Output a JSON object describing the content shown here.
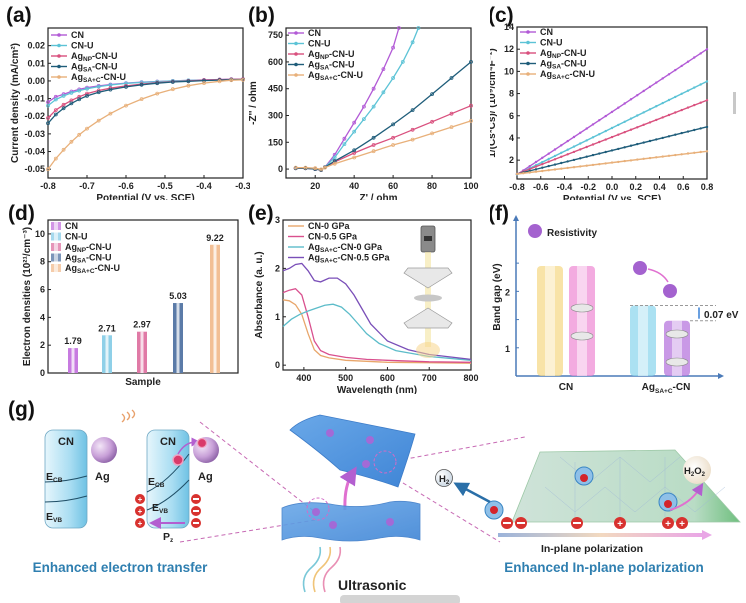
{
  "figure": {
    "panel_labels": [
      "(a)",
      "(b)",
      "(c)",
      "(d)",
      "(e)",
      "(f)",
      "(g)"
    ]
  },
  "legend_series": [
    {
      "name": "CN",
      "base": "CN",
      "sub": "",
      "tail": "",
      "color": "#b25ad6"
    },
    {
      "name": "CN-U",
      "base": "CN-U",
      "sub": "",
      "tail": "",
      "color": "#5cc3d6"
    },
    {
      "name": "AgNP-CN-U",
      "base": "Ag",
      "sub": "NP",
      "tail": "-CN-U",
      "color": "#d9507e"
    },
    {
      "name": "AgSA-CN-U",
      "base": "Ag",
      "sub": "SA",
      "tail": "-CN-U",
      "color": "#1f5d7a"
    },
    {
      "name": "AgSA+C-CN-U",
      "base": "Ag",
      "sub": "SA+C",
      "tail": "-CN-U",
      "color": "#e8b07a"
    }
  ],
  "chart_data": [
    {
      "id": "a",
      "type": "line",
      "title": "",
      "xlabel": "Potential (V vs. SCE)",
      "ylabel": "Current density (mA/cm²)",
      "xlim": [
        -0.8,
        -0.3
      ],
      "ylim": [
        -0.055,
        0.03
      ],
      "xticks": [
        -0.8,
        -0.7,
        -0.6,
        -0.5,
        -0.4,
        -0.3
      ],
      "xtick_labels": [
        "-0.8",
        "-0.7",
        "-0.6",
        "-0.5",
        "-0.4",
        "-0.3"
      ],
      "yticks": [
        -0.05,
        -0.04,
        -0.03,
        -0.02,
        -0.01,
        0.0,
        0.01,
        0.02
      ],
      "ytick_labels": [
        "-0.05",
        "-0.04",
        "-0.03",
        "-0.02",
        "-0.01",
        "0.00",
        "0.01",
        "0.02"
      ],
      "legend_position": "top-left",
      "x": [
        -0.8,
        -0.78,
        -0.76,
        -0.74,
        -0.72,
        -0.7,
        -0.67,
        -0.64,
        -0.6,
        -0.56,
        -0.52,
        -0.48,
        -0.44,
        -0.4,
        -0.36,
        -0.33,
        -0.3
      ],
      "series": [
        {
          "name": "CN",
          "values": [
            -0.012,
            -0.009,
            -0.0075,
            -0.006,
            -0.0048,
            -0.0038,
            -0.0028,
            -0.002,
            -0.0012,
            -0.0007,
            -0.0003,
            0.0,
            0.0003,
            0.0006,
            0.0008,
            0.001,
            0.001
          ]
        },
        {
          "name": "CN-U",
          "values": [
            -0.014,
            -0.0105,
            -0.0085,
            -0.0068,
            -0.0055,
            -0.0044,
            -0.0032,
            -0.0023,
            -0.0014,
            -0.0008,
            -0.0004,
            0.0,
            0.0003,
            0.0005,
            0.0007,
            0.0008,
            0.0009
          ]
        },
        {
          "name": "AgNP-CN-U",
          "values": [
            -0.021,
            -0.0165,
            -0.0135,
            -0.011,
            -0.009,
            -0.0072,
            -0.0054,
            -0.0041,
            -0.0028,
            -0.0018,
            -0.001,
            -0.0004,
            0.0,
            0.0004,
            0.0007,
            0.0009,
            0.001
          ]
        },
        {
          "name": "AgSA-CN-U",
          "values": [
            -0.024,
            -0.019,
            -0.0155,
            -0.0127,
            -0.0104,
            -0.0085,
            -0.0064,
            -0.0049,
            -0.0034,
            -0.0022,
            -0.0013,
            -0.0006,
            -0.0002,
            0.0002,
            0.0005,
            0.0007,
            0.0008
          ]
        },
        {
          "name": "AgSA+C-CN-U",
          "values": [
            -0.05,
            -0.044,
            -0.039,
            -0.0345,
            -0.0305,
            -0.027,
            -0.0225,
            -0.0185,
            -0.014,
            -0.0103,
            -0.0072,
            -0.0047,
            -0.0027,
            -0.0012,
            -0.0002,
            0.0004,
            0.0006
          ]
        }
      ]
    },
    {
      "id": "b",
      "type": "line",
      "title": "",
      "xlabel": "Z' / ohm",
      "ylabel": "-Z'' / ohm",
      "xlim": [
        5,
        100
      ],
      "ylim": [
        -50,
        790
      ],
      "xticks": [
        20,
        40,
        60,
        80,
        100
      ],
      "xtick_labels": [
        "20",
        "40",
        "60",
        "80",
        "100"
      ],
      "yticks": [
        0,
        150,
        300,
        450,
        600,
        750
      ],
      "ytick_labels": [
        "0",
        "150",
        "300",
        "450",
        "600",
        "750"
      ],
      "legend_position": "top-left",
      "series": [
        {
          "name": "CN",
          "x": [
            10,
            15,
            20,
            23,
            25,
            30,
            35,
            40,
            45,
            50,
            55,
            60,
            63
          ],
          "y": [
            5,
            5,
            0,
            -5,
            10,
            80,
            170,
            260,
            350,
            450,
            560,
            680,
            790
          ]
        },
        {
          "name": "CN-U",
          "x": [
            10,
            15,
            20,
            23,
            25,
            30,
            35,
            40,
            45,
            50,
            55,
            60,
            65,
            70,
            73
          ],
          "y": [
            5,
            5,
            0,
            -5,
            10,
            65,
            140,
            210,
            280,
            350,
            430,
            510,
            600,
            710,
            790
          ]
        },
        {
          "name": "AgNP-CN-U",
          "x": [
            10,
            15,
            20,
            23,
            25,
            30,
            40,
            50,
            60,
            70,
            80,
            90,
            100
          ],
          "y": [
            5,
            5,
            0,
            -5,
            10,
            40,
            90,
            135,
            175,
            220,
            265,
            310,
            355
          ]
        },
        {
          "name": "AgSA-CN-U",
          "x": [
            10,
            15,
            20,
            23,
            25,
            30,
            40,
            50,
            60,
            70,
            80,
            90,
            100
          ],
          "y": [
            5,
            5,
            0,
            -5,
            10,
            45,
            105,
            175,
            250,
            330,
            420,
            510,
            600
          ]
        },
        {
          "name": "AgSA+C-CN-U",
          "x": [
            10,
            15,
            20,
            23,
            25,
            30,
            40,
            50,
            60,
            70,
            80,
            90,
            100
          ],
          "y": [
            8,
            8,
            5,
            -2,
            8,
            30,
            65,
            100,
            135,
            165,
            200,
            235,
            270
          ]
        }
      ]
    },
    {
      "id": "c",
      "type": "line",
      "title": "",
      "xlabel": "Potential (V vs. SCE)",
      "ylabel": "1/(Cs*Cs)/ (10⁹/cm⁴F⁻²)",
      "xlim": [
        -0.8,
        0.8
      ],
      "ylim": [
        0.3,
        14
      ],
      "xticks": [
        -0.8,
        -0.6,
        -0.4,
        -0.2,
        0.0,
        0.2,
        0.4,
        0.6,
        0.8
      ],
      "xtick_labels": [
        "-0.8",
        "-0.6",
        "-0.4",
        "-0.2",
        "0.0",
        "0.2",
        "0.4",
        "0.6",
        "0.8"
      ],
      "yticks": [
        2,
        4,
        6,
        8,
        10,
        12,
        14
      ],
      "ytick_labels": [
        "2",
        "4",
        "6",
        "8",
        "10",
        "12",
        "14"
      ],
      "legend_position": "top-left",
      "x": [
        -0.8,
        0.8
      ],
      "series": [
        {
          "name": "CN",
          "values": [
            0.7,
            12.0
          ]
        },
        {
          "name": "CN-U",
          "values": [
            0.7,
            9.1
          ]
        },
        {
          "name": "AgNP-CN-U",
          "values": [
            0.75,
            7.4
          ]
        },
        {
          "name": "AgSA-CN-U",
          "values": [
            0.75,
            5.0
          ]
        },
        {
          "name": "AgSA+C-CN-U",
          "values": [
            0.75,
            2.8
          ]
        }
      ]
    },
    {
      "id": "d",
      "type": "bar",
      "title": "",
      "xlabel": "Sample",
      "ylabel": "Electron densities (10²¹/cm⁻³)",
      "ylim": [
        0,
        11
      ],
      "yticks": [
        0,
        2,
        4,
        6,
        8,
        10
      ],
      "ytick_labels": [
        "0",
        "2",
        "4",
        "6",
        "8",
        "10"
      ],
      "legend_position": "top-left",
      "categories": [
        "CN",
        "CN-U",
        "AgNP-CN-U",
        "AgSA-CN-U",
        "AgSA+C-CN-U"
      ],
      "values": [
        1.79,
        2.71,
        2.97,
        5.03,
        9.22
      ],
      "value_labels": [
        "1.79",
        "2.71",
        "2.97",
        "5.03",
        "9.22"
      ],
      "colors": [
        "#c77be0",
        "#8fd0e8",
        "#e07aa6",
        "#5b7ba8",
        "#f2bf95"
      ]
    },
    {
      "id": "e",
      "type": "line",
      "title": "",
      "xlabel": "Wavelength (nm)",
      "ylabel": "Absorbance (a. u.)",
      "xlim": [
        350,
        800
      ],
      "ylim": [
        -0.1,
        3
      ],
      "xticks": [
        400,
        500,
        600,
        700,
        800
      ],
      "xtick_labels": [
        "400",
        "500",
        "600",
        "700",
        "800"
      ],
      "yticks": [
        0,
        1,
        2,
        3
      ],
      "ytick_labels": [
        "0",
        "1",
        "2",
        "3"
      ],
      "legend_position": "top-left",
      "series": [
        {
          "name": "CN-0 GPa",
          "color": "#e8a66b",
          "x": [
            350,
            365,
            380,
            395,
            410,
            425,
            440,
            460,
            500,
            550,
            600,
            700,
            800
          ],
          "y": [
            1.35,
            1.33,
            1.25,
            1.05,
            0.65,
            0.32,
            0.2,
            0.15,
            0.1,
            0.08,
            0.06,
            0.05,
            0.04
          ]
        },
        {
          "name": "CN-0.5 GPa",
          "color": "#d9508e",
          "x": [
            350,
            365,
            380,
            395,
            410,
            425,
            440,
            460,
            500,
            550,
            600,
            700,
            800
          ],
          "y": [
            1.5,
            1.55,
            1.58,
            1.45,
            1.0,
            0.5,
            0.3,
            0.22,
            0.16,
            0.12,
            0.1,
            0.07,
            0.06
          ]
        },
        {
          "name": "AgSA+C-CN-0 GPa",
          "color": "#5cbcc9",
          "x": [
            350,
            370,
            390,
            410,
            430,
            450,
            470,
            490,
            510,
            530,
            550,
            580,
            620,
            700,
            800
          ],
          "y": [
            0.8,
            0.95,
            1.05,
            1.12,
            1.18,
            1.24,
            1.26,
            1.2,
            1.05,
            0.85,
            0.65,
            0.45,
            0.3,
            0.18,
            0.1
          ]
        },
        {
          "name": "AgSA+C-CN-0.5 GPa",
          "color": "#7a4fb8",
          "x": [
            350,
            365,
            380,
            395,
            410,
            425,
            440,
            460,
            480,
            500,
            520,
            540,
            560,
            600,
            650,
            700,
            800
          ],
          "y": [
            1.95,
            2.0,
            2.08,
            2.1,
            1.95,
            1.75,
            1.72,
            1.8,
            1.8,
            1.68,
            1.45,
            1.15,
            0.85,
            0.5,
            0.32,
            0.22,
            0.12
          ]
        }
      ]
    },
    {
      "id": "f",
      "type": "bar",
      "title": "",
      "xlabel": "",
      "ylabel": "Band gap (eV)",
      "yticks": [
        1,
        2
      ],
      "ytick_labels": [
        "1",
        "2"
      ],
      "ylim": [
        0.5,
        3.3
      ],
      "categories": [
        "CN",
        "AgSA+C-CN"
      ],
      "legend": "Resistivity",
      "annotation": "0.07 eV",
      "bars": [
        {
          "group": "CN",
          "top": 2.45,
          "color": "#f5d98a"
        },
        {
          "group": "CN",
          "top": 2.45,
          "color": "#ef8fd6"
        },
        {
          "group": "AgSA+C-CN",
          "top": 1.75,
          "color": "#8fd7ee"
        },
        {
          "group": "AgSA+C-CN",
          "top": 1.48,
          "color": "#b777dd"
        }
      ]
    }
  ],
  "schematic": {
    "left": {
      "block1_label": "CN",
      "block2_label": "CN",
      "ag_label": "Ag",
      "ecb": "E",
      "ecb_sub": "CB",
      "evb": "E",
      "evb_sub": "VB",
      "pz": "P",
      "pz_sub": "z",
      "caption": "Enhanced electron transfer"
    },
    "middle": {
      "caption": "Ultrasonic"
    },
    "right": {
      "h2": "H",
      "h2_sub": "2",
      "h2o2_a": "H",
      "h2o2_sub1": "2",
      "h2o2_b": "O",
      "h2o2_sub2": "2",
      "polarization_label": "In-plane polarization",
      "caption": "Enhanced In-plane polarization"
    }
  }
}
